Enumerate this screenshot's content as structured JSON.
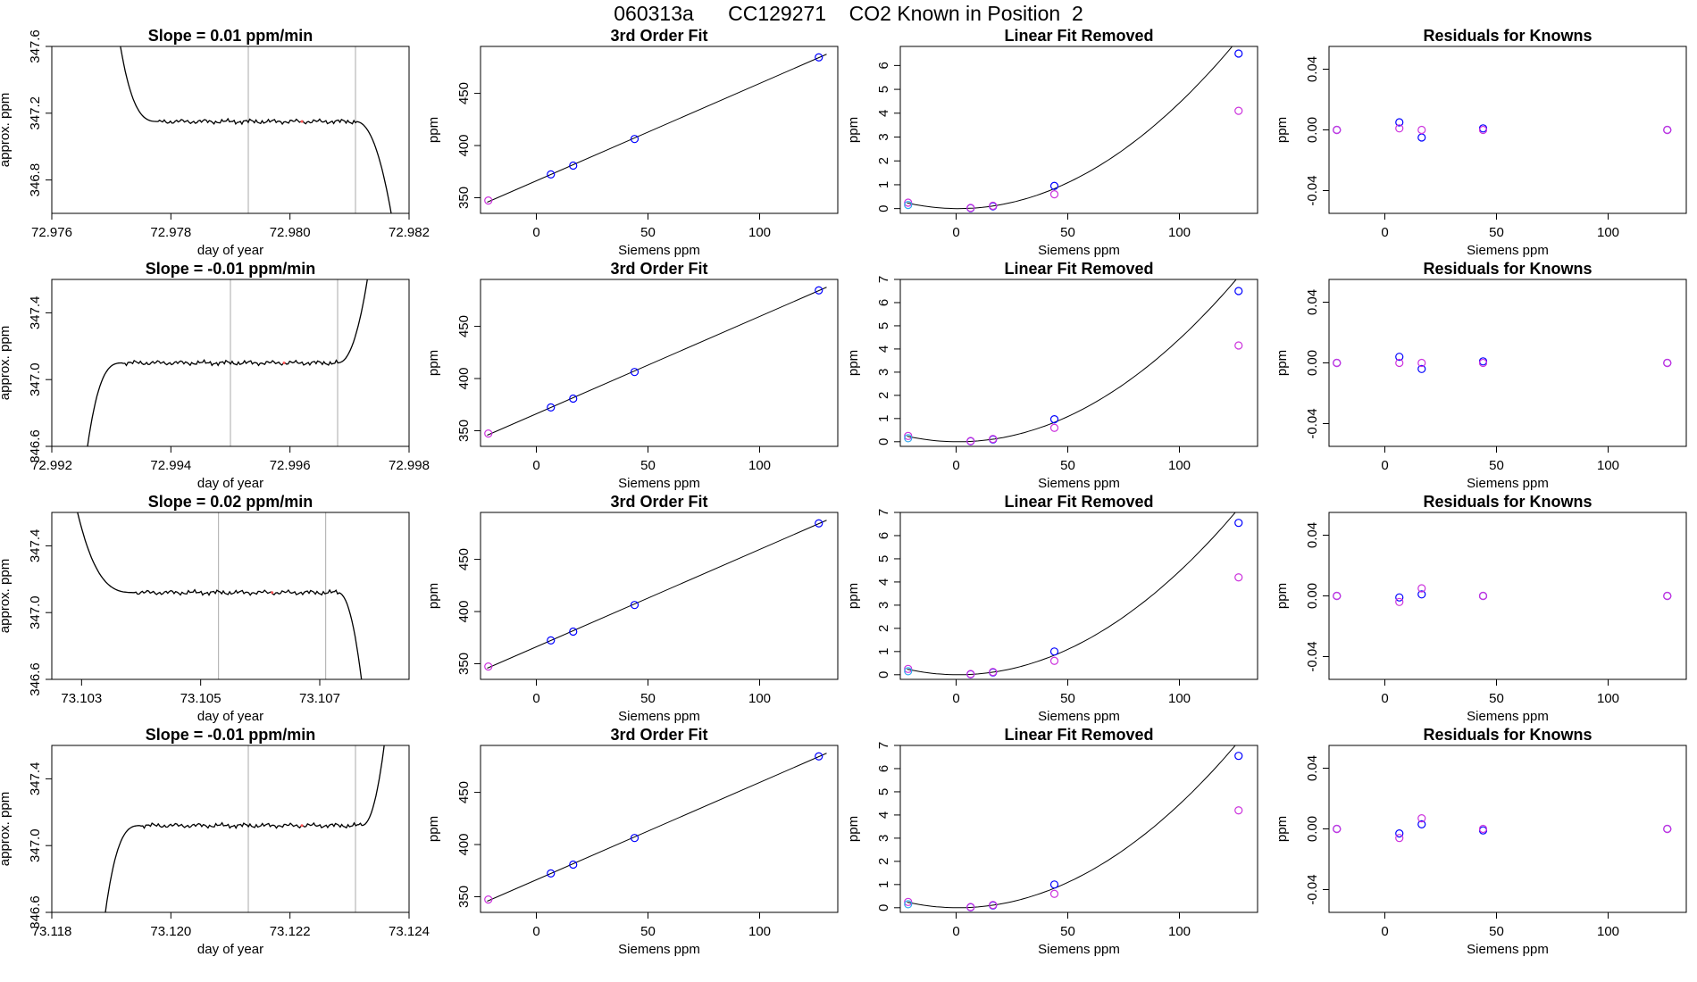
{
  "page_title": "060313a      CC129271    CO2 Known in Position  2",
  "colors": {
    "blue": "#0000ff",
    "magenta": "#cc33dd",
    "cyan": "#33aaee",
    "grey": "#aaaaaa",
    "red": "#ff5555"
  },
  "chart_data": [
    {
      "type": "line",
      "title": "Slope =  0.01  ppm/min",
      "xlabel": "day of year",
      "ylabel": "approx. ppm",
      "xlim": [
        72.976,
        72.982
      ],
      "ylim": [
        346.6,
        347.6
      ],
      "xticks": [
        72.976,
        72.978,
        72.98,
        72.982
      ],
      "xtick_labels": [
        "72.976",
        "72.978",
        "72.980",
        "72.982"
      ],
      "yticks": [
        346.8,
        347.2,
        347.6
      ],
      "ytick_labels": [
        "346.8",
        "347.2",
        "347.6"
      ],
      "vlines": [
        72.9793,
        72.9811
      ],
      "curve": {
        "x0": 72.977,
        "x_plateau": 72.9778,
        "x_end": 72.9811,
        "x_drop": 72.9817,
        "start": 348.0,
        "level": 347.15,
        "end": 346.6
      }
    },
    {
      "type": "scatter",
      "title": "3rd Order Fit",
      "xlabel": "Siemens ppm",
      "ylabel": "ppm",
      "xlim": [
        -25,
        135
      ],
      "ylim": [
        335,
        495
      ],
      "xticks": [
        0,
        50,
        100
      ],
      "xtick_labels": [
        "0",
        "50",
        "100"
      ],
      "yticks": [
        350,
        400,
        450
      ],
      "ytick_labels": [
        "350",
        "400",
        "450"
      ],
      "series": [
        {
          "color": "blue",
          "x": [
            6.5,
            16.5,
            44,
            126.5
          ],
          "y": [
            372.3,
            380.8,
            406.3,
            484.5
          ]
        },
        {
          "color": "magenta",
          "x": [
            -21.5
          ],
          "y": [
            347.3
          ]
        }
      ],
      "line": {
        "x": [
          -22,
          130
        ],
        "y": [
          345.7,
          487.5
        ]
      }
    },
    {
      "type": "scatter",
      "title": "Linear Fit Removed",
      "xlabel": "Siemens ppm",
      "ylabel": "ppm",
      "xlim": [
        -25,
        135
      ],
      "ylim": [
        -0.2,
        6.8
      ],
      "xticks": [
        0,
        50,
        100
      ],
      "xtick_labels": [
        "0",
        "50",
        "100"
      ],
      "yticks": [
        0,
        1,
        2,
        3,
        4,
        5,
        6
      ],
      "ytick_labels": [
        "0",
        "1",
        "2",
        "3",
        "4",
        "5",
        "6"
      ],
      "series": [
        {
          "color": "blue",
          "x": [
            6.5,
            16.5,
            44,
            126.5
          ],
          "y": [
            0.02,
            0.1,
            0.95,
            6.5
          ]
        },
        {
          "color": "magenta",
          "x": [
            -21.5,
            6.5,
            16.5,
            44,
            126.5
          ],
          "y": [
            0.25,
            0.03,
            0.12,
            0.6,
            4.1
          ]
        },
        {
          "color": "cyan",
          "x": [
            -21.5
          ],
          "y": [
            0.15
          ]
        }
      ],
      "curve": {
        "type": "quadratic",
        "a": 0.000452,
        "h": 1.0,
        "k": 0.0,
        "x_from": -22,
        "x_to": 128
      }
    },
    {
      "type": "scatter",
      "title": "Residuals for Knowns",
      "xlabel": "Siemens ppm",
      "ylabel": "ppm",
      "xlim": [
        -25,
        135
      ],
      "ylim": [
        -0.055,
        0.055
      ],
      "xticks": [
        0,
        50,
        100
      ],
      "xtick_labels": [
        "0",
        "50",
        "100"
      ],
      "yticks": [
        -0.04,
        0.0,
        0.04
      ],
      "ytick_labels": [
        "-0.04",
        "0.00",
        "0.04"
      ],
      "series": [
        {
          "color": "blue",
          "x": [
            -21.5,
            6.5,
            16.5,
            44,
            126.5
          ],
          "y": [
            0.0,
            0.005,
            -0.005,
            0.001,
            0.0
          ]
        },
        {
          "color": "magenta",
          "x": [
            -21.5,
            6.5,
            16.5,
            44,
            126.5
          ],
          "y": [
            0.0,
            0.001,
            0.0,
            0.0,
            0.0
          ]
        }
      ]
    },
    {
      "type": "line",
      "title": "Slope =  -0.01  ppm/min",
      "xlabel": "day of year",
      "ylabel": "approx. ppm",
      "xlim": [
        72.992,
        72.998
      ],
      "ylim": [
        346.6,
        347.6
      ],
      "xticks": [
        72.992,
        72.994,
        72.996,
        72.998
      ],
      "xtick_labels": [
        "72.992",
        "72.994",
        "72.996",
        "72.998"
      ],
      "yticks": [
        346.6,
        347.0,
        347.4
      ],
      "ytick_labels": [
        "346.6",
        "347.0",
        "347.4"
      ],
      "vlines": [
        72.995,
        72.9968
      ],
      "curve": {
        "x0": 72.9926,
        "x_plateau": 72.9932,
        "x_end": 72.9968,
        "x_drop": 72.9973,
        "start": 346.6,
        "level": 347.1,
        "end": 347.6
      }
    },
    {
      "type": "scatter",
      "title": "3rd Order Fit",
      "xlabel": "Siemens ppm",
      "ylabel": "ppm",
      "xlim": [
        -25,
        135
      ],
      "ylim": [
        335,
        495
      ],
      "xticks": [
        0,
        50,
        100
      ],
      "xtick_labels": [
        "0",
        "50",
        "100"
      ],
      "yticks": [
        350,
        400,
        450
      ],
      "ytick_labels": [
        "350",
        "400",
        "450"
      ],
      "series": [
        {
          "color": "blue",
          "x": [
            6.5,
            16.5,
            44,
            126.5
          ],
          "y": [
            372.3,
            380.8,
            406.3,
            484.5
          ]
        },
        {
          "color": "magenta",
          "x": [
            -21.5
          ],
          "y": [
            347.3
          ]
        }
      ],
      "line": {
        "x": [
          -22,
          130
        ],
        "y": [
          345.7,
          487.5
        ]
      }
    },
    {
      "type": "scatter",
      "title": "Linear Fit Removed",
      "xlabel": "Siemens ppm",
      "ylabel": "ppm",
      "xlim": [
        -25,
        135
      ],
      "ylim": [
        -0.2,
        7.0
      ],
      "xticks": [
        0,
        50,
        100
      ],
      "xtick_labels": [
        "0",
        "50",
        "100"
      ],
      "yticks": [
        0,
        1,
        2,
        3,
        4,
        5,
        6,
        7
      ],
      "ytick_labels": [
        "0",
        "1",
        "2",
        "3",
        "4",
        "5",
        "6",
        "7"
      ],
      "series": [
        {
          "color": "blue",
          "x": [
            6.5,
            16.5,
            44,
            126.5
          ],
          "y": [
            0.02,
            0.1,
            0.97,
            6.5
          ]
        },
        {
          "color": "magenta",
          "x": [
            -21.5,
            6.5,
            16.5,
            44,
            126.5
          ],
          "y": [
            0.25,
            0.03,
            0.12,
            0.6,
            4.15
          ]
        },
        {
          "color": "cyan",
          "x": [
            -21.5
          ],
          "y": [
            0.15
          ]
        }
      ],
      "curve": {
        "type": "quadratic",
        "a": 0.000452,
        "h": 1.0,
        "k": 0.0,
        "x_from": -22,
        "x_to": 128
      }
    },
    {
      "type": "scatter",
      "title": "Residuals for Knowns",
      "xlabel": "Siemens ppm",
      "ylabel": "ppm",
      "xlim": [
        -25,
        135
      ],
      "ylim": [
        -0.055,
        0.055
      ],
      "xticks": [
        0,
        50,
        100
      ],
      "xtick_labels": [
        "0",
        "50",
        "100"
      ],
      "yticks": [
        -0.04,
        0.0,
        0.04
      ],
      "ytick_labels": [
        "-0.04",
        "0.00",
        "0.04"
      ],
      "series": [
        {
          "color": "blue",
          "x": [
            -21.5,
            6.5,
            16.5,
            44,
            126.5
          ],
          "y": [
            0.0,
            0.004,
            -0.004,
            0.001,
            0.0
          ]
        },
        {
          "color": "magenta",
          "x": [
            -21.5,
            6.5,
            16.5,
            44,
            126.5
          ],
          "y": [
            0.0,
            0.0,
            0.0,
            0.0,
            0.0
          ]
        }
      ]
    },
    {
      "type": "line",
      "title": "Slope =  0.02  ppm/min",
      "xlabel": "day of year",
      "ylabel": "approx. ppm",
      "xlim": [
        73.1025,
        73.1085
      ],
      "ylim": [
        346.6,
        347.6
      ],
      "xticks": [
        73.103,
        73.105,
        73.107
      ],
      "xtick_labels": [
        "73.103",
        "73.105",
        "73.107"
      ],
      "yticks": [
        346.6,
        347.0,
        347.4
      ],
      "ytick_labels": [
        "346.6",
        "347.0",
        "347.4"
      ],
      "vlines": [
        73.1053,
        73.1071
      ],
      "curve": {
        "x0": 73.1029,
        "x_plateau": 73.1039,
        "x_end": 73.1073,
        "x_drop": 73.1077,
        "start": 347.65,
        "level": 347.12,
        "end": 346.6
      }
    },
    {
      "type": "scatter",
      "title": "3rd Order Fit",
      "xlabel": "Siemens ppm",
      "ylabel": "ppm",
      "xlim": [
        -25,
        135
      ],
      "ylim": [
        335,
        495
      ],
      "xticks": [
        0,
        50,
        100
      ],
      "xtick_labels": [
        "0",
        "50",
        "100"
      ],
      "yticks": [
        350,
        400,
        450
      ],
      "ytick_labels": [
        "350",
        "400",
        "450"
      ],
      "series": [
        {
          "color": "blue",
          "x": [
            6.5,
            16.5,
            44,
            126.5
          ],
          "y": [
            372.3,
            380.8,
            406.3,
            484.5
          ]
        },
        {
          "color": "magenta",
          "x": [
            -21.5
          ],
          "y": [
            347.3
          ]
        }
      ],
      "line": {
        "x": [
          -22,
          130
        ],
        "y": [
          345.7,
          487.5
        ]
      }
    },
    {
      "type": "scatter",
      "title": "Linear Fit Removed",
      "xlabel": "Siemens ppm",
      "ylabel": "ppm",
      "xlim": [
        -25,
        135
      ],
      "ylim": [
        -0.2,
        7.0
      ],
      "xticks": [
        0,
        50,
        100
      ],
      "xtick_labels": [
        "0",
        "50",
        "100"
      ],
      "yticks": [
        0,
        1,
        2,
        3,
        4,
        5,
        6,
        7
      ],
      "ytick_labels": [
        "0",
        "1",
        "2",
        "3",
        "4",
        "5",
        "6",
        "7"
      ],
      "series": [
        {
          "color": "blue",
          "x": [
            6.5,
            16.5,
            44,
            126.5
          ],
          "y": [
            0.02,
            0.1,
            1.0,
            6.55
          ]
        },
        {
          "color": "magenta",
          "x": [
            -21.5,
            6.5,
            16.5,
            44,
            126.5
          ],
          "y": [
            0.25,
            0.03,
            0.12,
            0.6,
            4.2
          ]
        },
        {
          "color": "cyan",
          "x": [
            -21.5
          ],
          "y": [
            0.15
          ]
        }
      ],
      "curve": {
        "type": "quadratic",
        "a": 0.000455,
        "h": 1.0,
        "k": 0.0,
        "x_from": -22,
        "x_to": 128
      }
    },
    {
      "type": "scatter",
      "title": "Residuals for Knowns",
      "xlabel": "Siemens ppm",
      "ylabel": "ppm",
      "xlim": [
        -25,
        135
      ],
      "ylim": [
        -0.055,
        0.055
      ],
      "xticks": [
        0,
        50,
        100
      ],
      "xtick_labels": [
        "0",
        "50",
        "100"
      ],
      "yticks": [
        -0.04,
        0.0,
        0.04
      ],
      "ytick_labels": [
        "-0.04",
        "0.00",
        "0.04"
      ],
      "series": [
        {
          "color": "blue",
          "x": [
            -21.5,
            6.5,
            16.5,
            44,
            126.5
          ],
          "y": [
            0.0,
            -0.001,
            0.001,
            0.0,
            0.0
          ]
        },
        {
          "color": "magenta",
          "x": [
            -21.5,
            6.5,
            16.5,
            44,
            126.5
          ],
          "y": [
            0.0,
            -0.004,
            0.005,
            0.0,
            0.0
          ]
        }
      ]
    },
    {
      "type": "line",
      "title": "Slope =  -0.01  ppm/min",
      "xlabel": "day of year",
      "ylabel": "approx. ppm",
      "xlim": [
        73.118,
        73.124
      ],
      "ylim": [
        346.6,
        347.6
      ],
      "xticks": [
        73.118,
        73.12,
        73.122,
        73.124
      ],
      "xtick_labels": [
        "73.118",
        "73.120",
        "73.122",
        "73.124"
      ],
      "yticks": [
        346.6,
        347.0,
        347.4
      ],
      "ytick_labels": [
        "346.6",
        "347.0",
        "347.4"
      ],
      "vlines": [
        73.1213,
        73.1231
      ],
      "curve": {
        "x0": 73.1189,
        "x_plateau": 73.1195,
        "x_end": 73.1232,
        "x_drop": 73.1236,
        "start": 346.6,
        "level": 347.12,
        "end": 347.65
      }
    },
    {
      "type": "scatter",
      "title": "3rd Order Fit",
      "xlabel": "Siemens ppm",
      "ylabel": "ppm",
      "xlim": [
        -25,
        135
      ],
      "ylim": [
        335,
        495
      ],
      "xticks": [
        0,
        50,
        100
      ],
      "xtick_labels": [
        "0",
        "50",
        "100"
      ],
      "yticks": [
        350,
        400,
        450
      ],
      "ytick_labels": [
        "350",
        "400",
        "450"
      ],
      "series": [
        {
          "color": "blue",
          "x": [
            6.5,
            16.5,
            44,
            126.5
          ],
          "y": [
            372.3,
            380.8,
            406.3,
            484.5
          ]
        },
        {
          "color": "magenta",
          "x": [
            -21.5
          ],
          "y": [
            347.3
          ]
        }
      ],
      "line": {
        "x": [
          -22,
          130
        ],
        "y": [
          345.7,
          487.5
        ]
      }
    },
    {
      "type": "scatter",
      "title": "Linear Fit Removed",
      "xlabel": "Siemens ppm",
      "ylabel": "ppm",
      "xlim": [
        -25,
        135
      ],
      "ylim": [
        -0.2,
        7.0
      ],
      "xticks": [
        0,
        50,
        100
      ],
      "xtick_labels": [
        "0",
        "50",
        "100"
      ],
      "yticks": [
        0,
        1,
        2,
        3,
        4,
        5,
        6,
        7
      ],
      "ytick_labels": [
        "0",
        "1",
        "2",
        "3",
        "4",
        "5",
        "6",
        "7"
      ],
      "series": [
        {
          "color": "blue",
          "x": [
            6.5,
            16.5,
            44,
            126.5
          ],
          "y": [
            0.02,
            0.1,
            1.0,
            6.55
          ]
        },
        {
          "color": "magenta",
          "x": [
            -21.5,
            6.5,
            16.5,
            44,
            126.5
          ],
          "y": [
            0.25,
            0.03,
            0.12,
            0.6,
            4.2
          ]
        },
        {
          "color": "cyan",
          "x": [
            -21.5
          ],
          "y": [
            0.15
          ]
        }
      ],
      "curve": {
        "type": "quadratic",
        "a": 0.000455,
        "h": 1.0,
        "k": 0.0,
        "x_from": -22,
        "x_to": 128
      }
    },
    {
      "type": "scatter",
      "title": "Residuals for Knowns",
      "xlabel": "Siemens ppm",
      "ylabel": "ppm",
      "xlim": [
        -25,
        135
      ],
      "ylim": [
        -0.055,
        0.055
      ],
      "xticks": [
        0,
        50,
        100
      ],
      "xtick_labels": [
        "0",
        "50",
        "100"
      ],
      "yticks": [
        -0.04,
        0.0,
        0.04
      ],
      "ytick_labels": [
        "-0.04",
        "0.00",
        "0.04"
      ],
      "series": [
        {
          "color": "blue",
          "x": [
            -21.5,
            6.5,
            16.5,
            44,
            126.5
          ],
          "y": [
            0.0,
            -0.003,
            0.003,
            -0.001,
            0.0
          ]
        },
        {
          "color": "magenta",
          "x": [
            -21.5,
            6.5,
            16.5,
            44,
            126.5
          ],
          "y": [
            0.0,
            -0.006,
            0.007,
            0.0,
            0.0
          ]
        }
      ]
    }
  ]
}
